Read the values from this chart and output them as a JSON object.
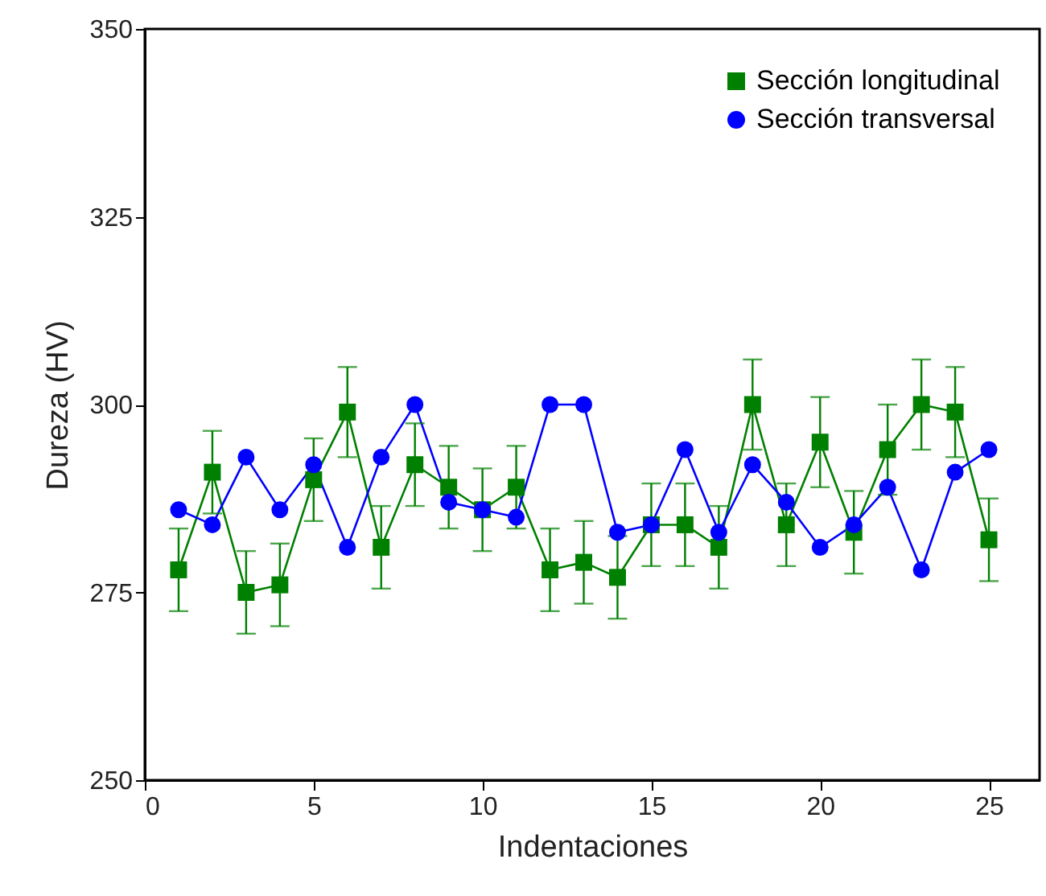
{
  "chart_data": {
    "type": "line",
    "xlabel": "Indentaciones",
    "ylabel": "Dureza (HV)",
    "x": [
      1,
      2,
      3,
      4,
      5,
      6,
      7,
      8,
      9,
      10,
      11,
      12,
      13,
      14,
      15,
      16,
      17,
      18,
      19,
      20,
      21,
      22,
      23,
      24,
      25
    ],
    "series": [
      {
        "name": "Sección longitudinal",
        "color": "#008000",
        "marker": "square",
        "values": [
          278,
          291,
          275,
          276,
          290,
          299,
          281,
          292,
          289,
          286,
          289,
          278,
          279,
          277,
          284,
          284,
          281,
          300,
          284,
          295,
          283,
          294,
          300,
          299,
          282
        ],
        "errors": [
          5.5,
          5.5,
          5.5,
          5.5,
          5.5,
          6,
          5.5,
          5.5,
          5.5,
          5.5,
          5.5,
          5.5,
          5.5,
          5.5,
          5.5,
          5.5,
          5.5,
          6,
          5.5,
          6,
          5.5,
          6,
          6,
          6,
          5.5
        ]
      },
      {
        "name": "Sección transversal",
        "color": "#0000ff",
        "marker": "circle",
        "values": [
          286,
          284,
          293,
          286,
          292,
          281,
          293,
          300,
          287,
          286,
          285,
          300,
          300,
          283,
          284,
          294,
          283,
          292,
          287,
          281,
          284,
          289,
          278,
          291,
          294
        ]
      }
    ],
    "xlim": [
      0,
      26.5
    ],
    "ylim": [
      250,
      350
    ],
    "xticks": [
      0,
      5,
      10,
      15,
      20,
      25
    ],
    "yticks": [
      250,
      275,
      300,
      325,
      350
    ],
    "grid": false,
    "legend": "top right",
    "line_style": "solid"
  }
}
